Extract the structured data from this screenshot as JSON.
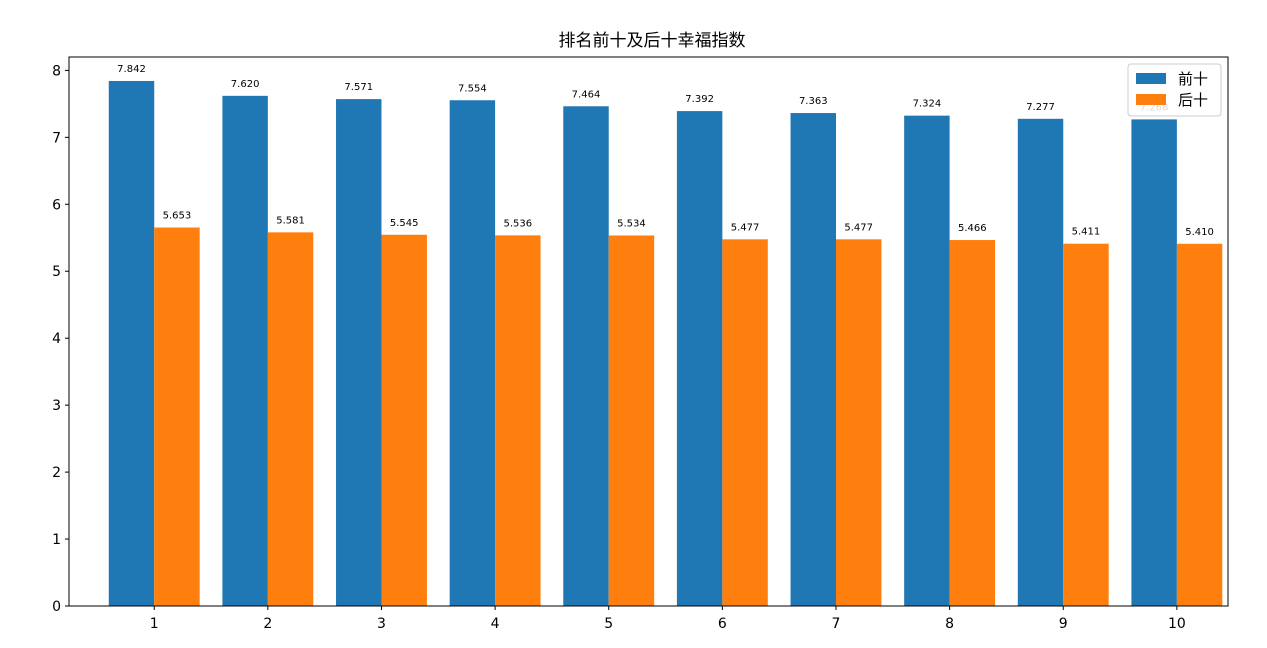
{
  "chart_data": {
    "type": "bar",
    "title": "排名前十及后十幸福指数",
    "xlabel": "",
    "ylabel": "",
    "categories": [
      "1",
      "2",
      "3",
      "4",
      "5",
      "6",
      "7",
      "8",
      "9",
      "10"
    ],
    "ylim": [
      0,
      8.2
    ],
    "yticks": [
      0,
      1,
      2,
      3,
      4,
      5,
      6,
      7,
      8
    ],
    "grid": false,
    "legend_position": "top-right",
    "series": [
      {
        "name": "前十",
        "color": "#1f77b4",
        "values": [
          7.842,
          7.62,
          7.571,
          7.554,
          7.464,
          7.392,
          7.363,
          7.324,
          7.277,
          7.268
        ],
        "labels": [
          "7.842",
          "7.620",
          "7.571",
          "7.554",
          "7.464",
          "7.392",
          "7.363",
          "7.324",
          "7.277",
          "7.268"
        ]
      },
      {
        "name": "后十",
        "color": "#ff7f0e",
        "values": [
          5.653,
          5.581,
          5.545,
          5.536,
          5.534,
          5.477,
          5.477,
          5.466,
          5.411,
          5.41
        ],
        "labels": [
          "5.653",
          "5.581",
          "5.545",
          "5.536",
          "5.534",
          "5.477",
          "5.477",
          "5.466",
          "5.411",
          "5.410"
        ]
      }
    ]
  }
}
